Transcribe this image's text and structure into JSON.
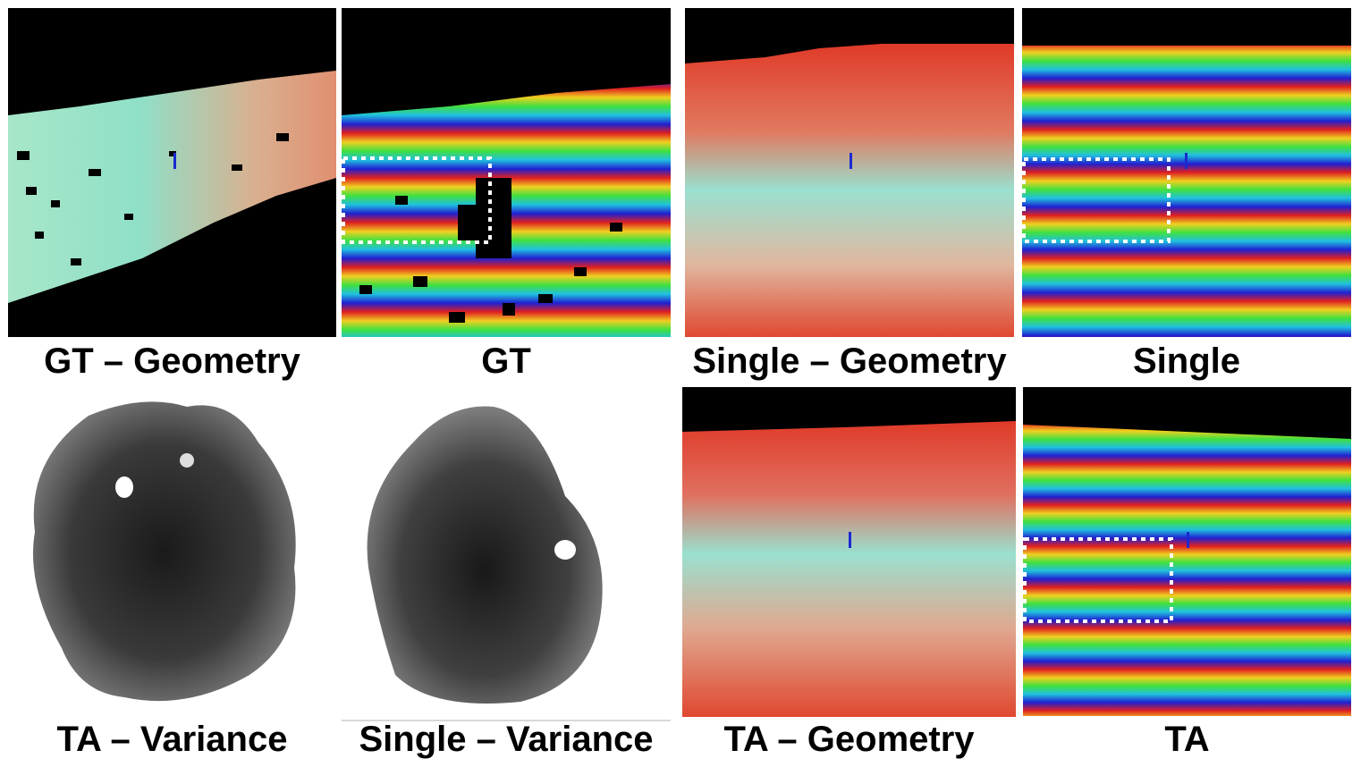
{
  "captions": {
    "gt_geometry": "GT – Geometry",
    "gt": "GT",
    "single_geometry": "Single – Geometry",
    "single": "Single",
    "ta_variance": "TA – Variance",
    "single_variance": "Single – Variance",
    "ta_geometry": "TA – Geometry",
    "ta": "TA"
  },
  "colors": {
    "background": "#000000",
    "terrain_red": "#e0402a",
    "terrain_cyan": "#8fe0c8",
    "zoom_box": "#ffffff"
  }
}
